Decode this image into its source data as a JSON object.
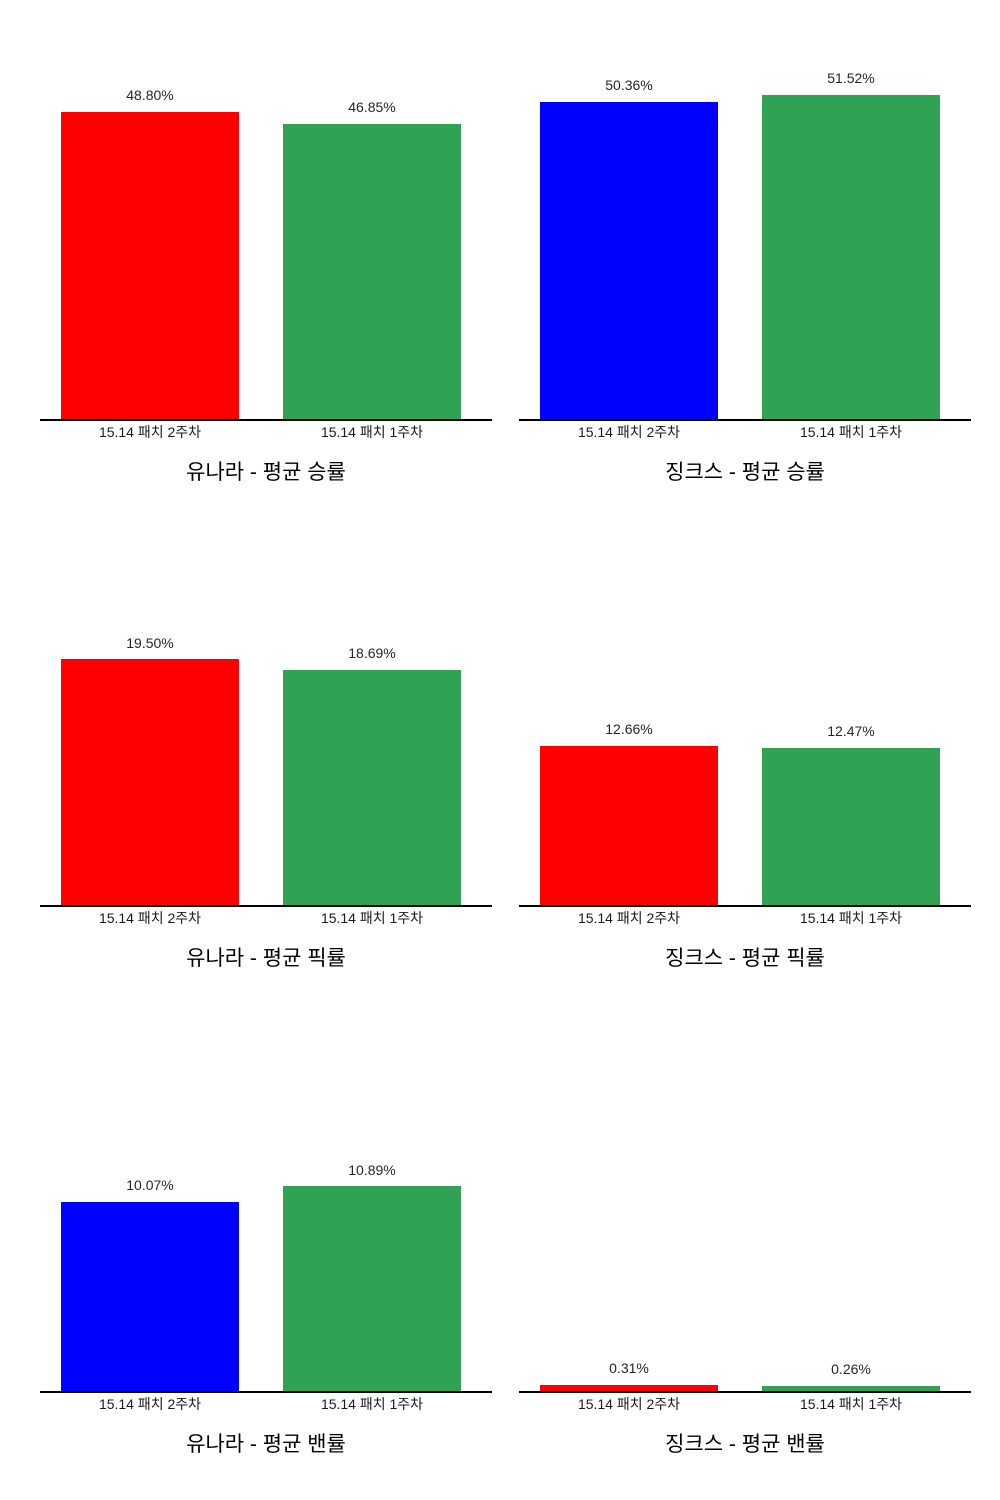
{
  "page": {
    "background": "#ffffff"
  },
  "colors": {
    "red": "#FF0000",
    "blue": "#0000FF",
    "green": "#2FA254",
    "axis": "#000000",
    "label_text": "#262626",
    "tick_text": "#1a1a1a",
    "title_text": "#000000"
  },
  "chart_data": [
    {
      "type": "bar",
      "title": "유나라 - 평균 승률",
      "categories": [
        "15.14 패치 2주차",
        "15.14 패치 1주차"
      ],
      "values": [
        48.8,
        46.85
      ],
      "value_labels": [
        "48.80%",
        "46.85%"
      ],
      "bar_colors": [
        "#FF0000",
        "#2FA254"
      ],
      "xlabel": "",
      "ylabel": "",
      "ylim": [
        0,
        54
      ],
      "grid": false,
      "legend": false
    },
    {
      "type": "bar",
      "title": "징크스 - 평균 승률",
      "categories": [
        "15.14 패치 2주차",
        "15.14 패치 1주차"
      ],
      "values": [
        50.36,
        51.52
      ],
      "value_labels": [
        "50.36%",
        "51.52%"
      ],
      "bar_colors": [
        "#0000FF",
        "#2FA254"
      ],
      "xlabel": "",
      "ylabel": "",
      "ylim": [
        0,
        54
      ],
      "grid": false,
      "legend": false
    },
    {
      "type": "bar",
      "title": "유나라 - 평균 픽률",
      "categories": [
        "15.14 패치 2주차",
        "15.14 패치 1주차"
      ],
      "values": [
        19.5,
        18.69
      ],
      "value_labels": [
        "19.50%",
        "18.69%"
      ],
      "bar_colors": [
        "#FF0000",
        "#2FA254"
      ],
      "xlabel": "",
      "ylabel": "",
      "ylim": [
        0,
        27
      ],
      "grid": false,
      "legend": false
    },
    {
      "type": "bar",
      "title": "징크스 - 평균 픽률",
      "categories": [
        "15.14 패치 2주차",
        "15.14 패치 1주차"
      ],
      "values": [
        12.66,
        12.47
      ],
      "value_labels": [
        "12.66%",
        "12.47%"
      ],
      "bar_colors": [
        "#FF0000",
        "#2FA254"
      ],
      "xlabel": "",
      "ylabel": "",
      "ylim": [
        0,
        27
      ],
      "grid": false,
      "legend": false
    },
    {
      "type": "bar",
      "title": "유나라 - 평균 밴률",
      "categories": [
        "15.14 패치 2주차",
        "15.14 패치 1주차"
      ],
      "values": [
        10.07,
        10.89
      ],
      "value_labels": [
        "10.07%",
        "10.89%"
      ],
      "bar_colors": [
        "#0000FF",
        "#2FA254"
      ],
      "xlabel": "",
      "ylabel": "",
      "ylim": [
        0,
        18.1
      ],
      "grid": false,
      "legend": false
    },
    {
      "type": "bar",
      "title": "징크스 - 평균 밴률",
      "categories": [
        "15.14 패치 2주차",
        "15.14 패치 1주차"
      ],
      "values": [
        0.31,
        0.26
      ],
      "value_labels": [
        "0.31%",
        "0.26%"
      ],
      "bar_colors": [
        "#FF0000",
        "#2FA254"
      ],
      "xlabel": "",
      "ylabel": "",
      "ylim": [
        0,
        18.1
      ],
      "grid": false,
      "legend": false
    }
  ]
}
